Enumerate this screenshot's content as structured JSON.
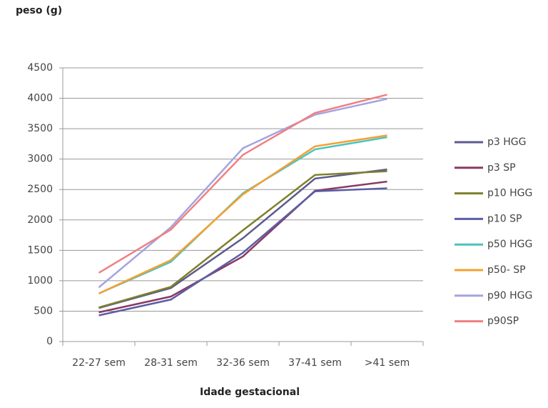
{
  "chart_data": {
    "type": "line",
    "y_label": "peso (g)",
    "x_label": "Idade gestacional",
    "categories": [
      "22-27 sem",
      "28-31 sem",
      "32-36 sem",
      "37-41 sem",
      ">41 sem"
    ],
    "ylim": [
      0,
      4500
    ],
    "yticks": [
      0,
      500,
      1000,
      1500,
      2000,
      2500,
      3000,
      3500,
      4000,
      4500
    ],
    "grid": true,
    "legend": "right",
    "series": [
      {
        "name": "p3 HGG",
        "color": "#5b5b8f",
        "values": [
          552,
          880,
          1700,
          2680,
          2830
        ]
      },
      {
        "name": "p3 SP",
        "color": "#8b3a62",
        "values": [
          480,
          740,
          1400,
          2480,
          2630
        ]
      },
      {
        "name": "p10 HGG",
        "color": "#7f7f2a",
        "values": [
          560,
          900,
          1830,
          2740,
          2800
        ]
      },
      {
        "name": "p10 SP",
        "color": "#5b5ea6",
        "values": [
          430,
          690,
          1460,
          2470,
          2520
        ]
      },
      {
        "name": "p50 HGG",
        "color": "#4bc4c0",
        "values": [
          790,
          1310,
          2440,
          3160,
          3360
        ]
      },
      {
        "name": "p50- SP",
        "color": "#f5a030",
        "values": [
          790,
          1340,
          2420,
          3210,
          3390
        ]
      },
      {
        "name": "p90 HGG",
        "color": "#a4a4e0",
        "values": [
          890,
          1880,
          3180,
          3730,
          3990
        ]
      },
      {
        "name": "p90SP",
        "color": "#f08080",
        "values": [
          1130,
          1840,
          3070,
          3760,
          4060
        ]
      }
    ]
  }
}
